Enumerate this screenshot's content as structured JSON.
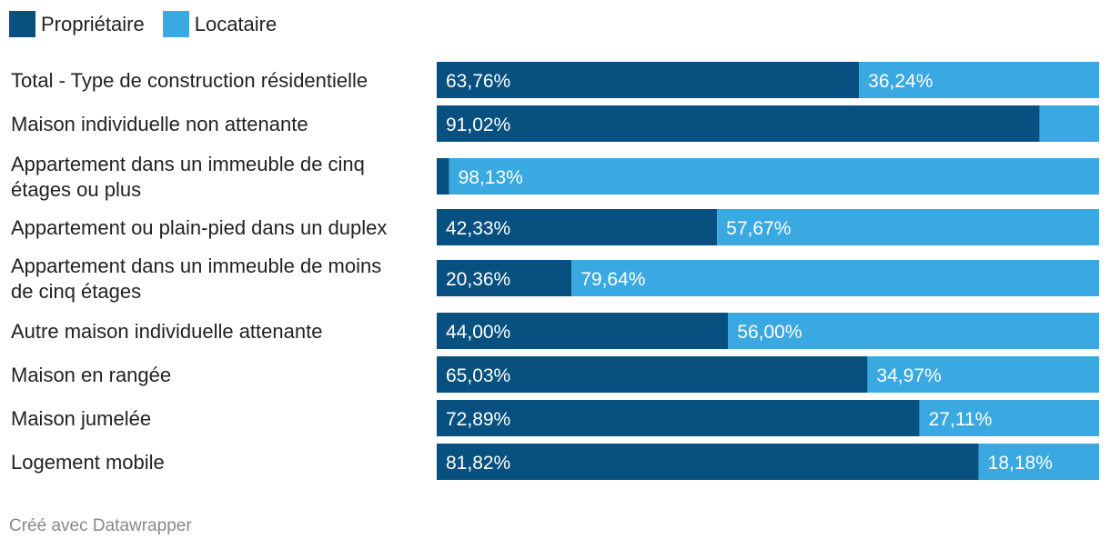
{
  "legend": {
    "owner_label": "Propriétaire",
    "renter_label": "Locataire"
  },
  "colors": {
    "owner": "#07507f",
    "renter": "#3aa9e1",
    "label_text": "#ffffff",
    "category_text": "#222222"
  },
  "footer": {
    "credit": "Créé avec Datawrapper"
  },
  "chart_data": {
    "type": "bar",
    "orientation": "horizontal",
    "stacked": true,
    "normalized_percent": true,
    "xlim": [
      0,
      100
    ],
    "categories": [
      [
        "Total - Type de construction résidentielle"
      ],
      [
        "Maison individuelle non attenante"
      ],
      [
        "Appartement dans un immeuble de cinq",
        "étages ou plus"
      ],
      [
        "Appartement ou plain-pied dans un duplex"
      ],
      [
        "Appartement dans un immeuble de moins",
        "de cinq étages"
      ],
      [
        "Autre maison individuelle attenante"
      ],
      [
        "Maison en rangée"
      ],
      [
        "Maison jumelée"
      ],
      [
        "Logement mobile"
      ]
    ],
    "series": [
      {
        "name": "Propriétaire",
        "values": [
          63.76,
          91.02,
          1.87,
          42.33,
          20.36,
          44.0,
          65.03,
          72.89,
          81.82
        ],
        "labels": [
          "63,76%",
          "91,02%",
          null,
          "42,33%",
          "20,36%",
          "44,00%",
          "65,03%",
          "72,89%",
          "81,82%"
        ]
      },
      {
        "name": "Locataire",
        "values": [
          36.24,
          8.98,
          98.13,
          57.67,
          79.64,
          56.0,
          34.97,
          27.11,
          18.18
        ],
        "labels": [
          "36,24%",
          null,
          "98,13%",
          "57,67%",
          "79,64%",
          "56,00%",
          "34,97%",
          "27,11%",
          "18,18%"
        ]
      }
    ]
  }
}
